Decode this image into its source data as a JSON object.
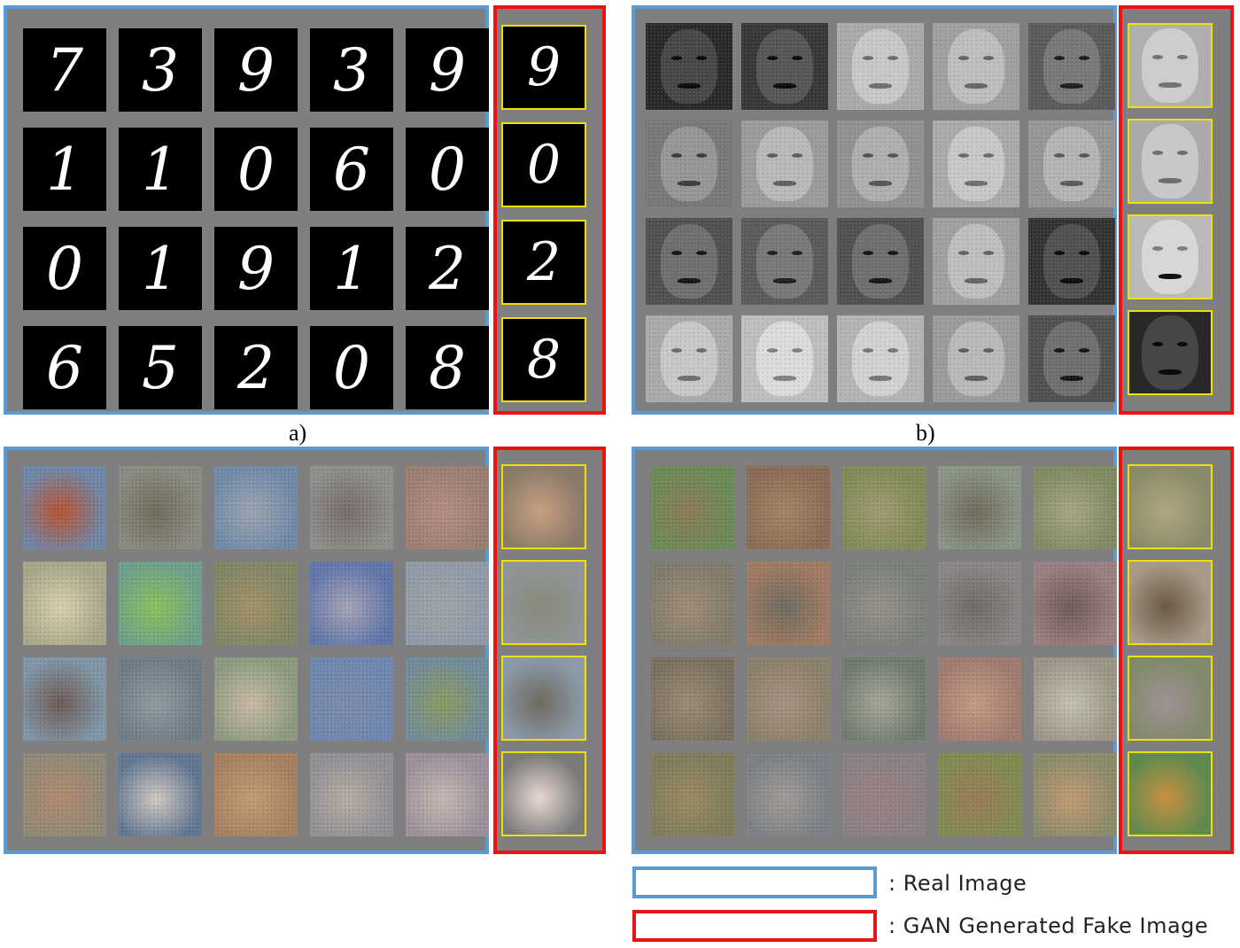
{
  "captions": {
    "a": "a)",
    "b": "b)"
  },
  "colors": {
    "real_frame": "#5b9bd5",
    "fake_frame": "#ee1111",
    "fake_tile_border": "#f0e000",
    "panel_bg": "#7f7f7f"
  },
  "panel_a": {
    "real_digits": [
      "7",
      "3",
      "9",
      "3",
      "9",
      "1",
      "1",
      "0",
      "6",
      "0",
      "0",
      "1",
      "9",
      "1",
      "2",
      "6",
      "5",
      "2",
      "0",
      "8"
    ],
    "fake_digits": [
      "9",
      "0",
      "2",
      "8"
    ]
  },
  "legend": {
    "real_label": ": Real Image",
    "fake_label": ": GAN Generated Fake Image"
  }
}
